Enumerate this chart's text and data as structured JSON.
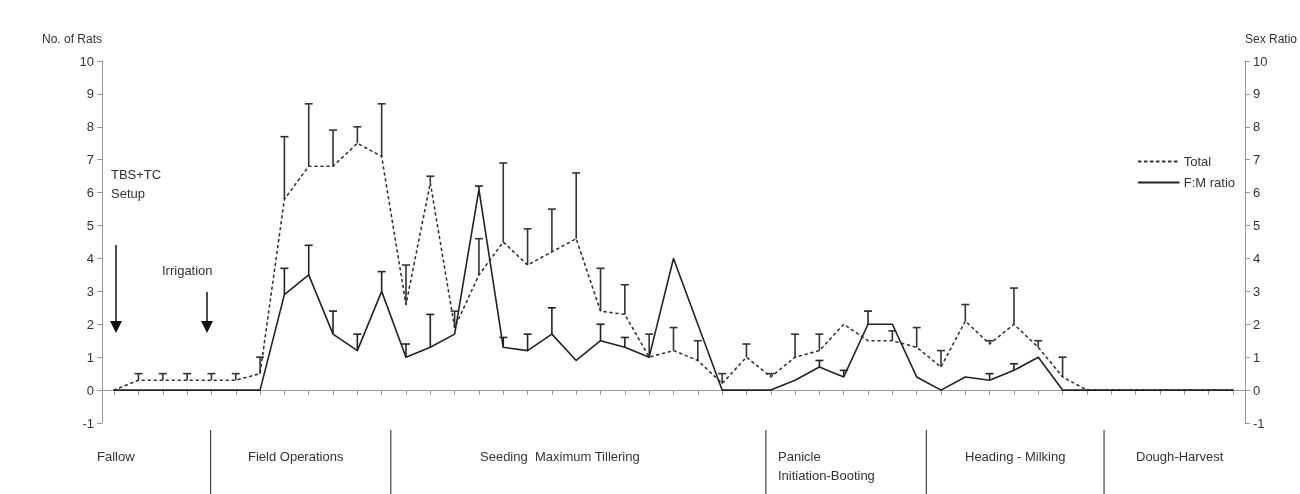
{
  "chart_data": {
    "type": "line",
    "ylabel": "No. of Rats",
    "y2label": "Sex Ratio",
    "categories": [
      null,
      null,
      null,
      null,
      null,
      null,
      null,
      null,
      null,
      null,
      null,
      null,
      null,
      null,
      null,
      null,
      null,
      null,
      null,
      null,
      null,
      null,
      null,
      null,
      null,
      null,
      null,
      null,
      null,
      null,
      null,
      null,
      null,
      null,
      null,
      null,
      null,
      null,
      null,
      null,
      null,
      null,
      null,
      null,
      null,
      null,
      null
    ],
    "series": [
      {
        "name": "Total",
        "color": "#333333",
        "line_style": "dotted",
        "values": [
          0,
          0.3,
          0.3,
          0.3,
          0.3,
          0.3,
          0.5,
          5.8,
          6.8,
          6.8,
          7.5,
          7.1,
          2.6,
          6.3,
          1.9,
          3.5,
          4.5,
          3.8,
          4.2,
          4.6,
          2.4,
          2.3,
          1.0,
          1.2,
          0.9,
          0.2,
          1.0,
          0.4,
          1.0,
          1.2,
          2.0,
          1.5,
          1.5,
          1.3,
          0.7,
          2.1,
          1.4,
          2.0,
          1.3,
          0.4,
          0,
          0,
          0,
          0,
          0,
          0,
          0
        ],
        "errors": [
          null,
          [
            0.3,
            0.5
          ],
          [
            0.3,
            0.5
          ],
          [
            0.3,
            0.5
          ],
          [
            0.3,
            0.5
          ],
          [
            0.3,
            0.5
          ],
          [
            0.5,
            1.0
          ],
          [
            5.8,
            7.7
          ],
          [
            6.8,
            8.7
          ],
          [
            6.8,
            7.9
          ],
          [
            7.5,
            8.0
          ],
          [
            7.1,
            8.7
          ],
          [
            2.6,
            3.8
          ],
          [
            6.3,
            6.5
          ],
          [
            1.9,
            2.4
          ],
          [
            3.5,
            4.6
          ],
          [
            4.5,
            6.9
          ],
          [
            3.8,
            4.9
          ],
          [
            4.2,
            5.5
          ],
          [
            4.6,
            6.6
          ],
          [
            2.4,
            3.7
          ],
          [
            2.3,
            3.2
          ],
          [
            1.0,
            1.7
          ],
          [
            1.2,
            1.9
          ],
          [
            0.9,
            1.5
          ],
          [
            0.2,
            0.5
          ],
          [
            1.0,
            1.4
          ],
          [
            0.4,
            0.5
          ],
          [
            1.0,
            1.7
          ],
          [
            1.2,
            1.7
          ],
          null,
          null,
          [
            1.5,
            1.8
          ],
          [
            1.3,
            1.9
          ],
          [
            0.7,
            1.2
          ],
          [
            2.1,
            2.6
          ],
          [
            1.4,
            1.5
          ],
          [
            2.0,
            3.1
          ],
          [
            1.3,
            1.5
          ],
          [
            0.4,
            1.0
          ],
          null,
          null,
          null,
          null,
          null,
          null,
          null
        ]
      },
      {
        "name": "F:M ratio",
        "color": "#222222",
        "line_style": "solid",
        "axis": "y2",
        "values": [
          0,
          0,
          0,
          0,
          0,
          0,
          0,
          2.9,
          3.5,
          1.7,
          1.2,
          3.0,
          1.0,
          1.3,
          1.7,
          6.1,
          1.3,
          1.2,
          1.7,
          0.9,
          1.5,
          1.3,
          1.0,
          4.0,
          2.0,
          0,
          0,
          0,
          0.3,
          0.7,
          0.4,
          2.0,
          2.0,
          0.4,
          0,
          0.4,
          0.3,
          0.6,
          1.0,
          0,
          0,
          0,
          0,
          0,
          0,
          0,
          0
        ],
        "errors": [
          null,
          null,
          null,
          null,
          null,
          null,
          null,
          [
            2.9,
            3.7
          ],
          [
            3.5,
            4.4
          ],
          [
            1.7,
            2.4
          ],
          [
            1.2,
            1.7
          ],
          [
            3.0,
            3.6
          ],
          [
            1.0,
            1.4
          ],
          [
            1.3,
            2.3
          ],
          null,
          [
            6.1,
            6.2
          ],
          [
            1.3,
            1.6
          ],
          [
            1.2,
            1.7
          ],
          [
            1.7,
            2.5
          ],
          null,
          [
            1.5,
            2.0
          ],
          [
            1.3,
            1.6
          ],
          null,
          null,
          null,
          null,
          null,
          null,
          null,
          [
            0.7,
            0.9
          ],
          [
            0.4,
            0.6
          ],
          [
            2.0,
            2.4
          ],
          null,
          null,
          null,
          null,
          [
            0.3,
            0.5
          ],
          [
            0.6,
            0.8
          ],
          null,
          null,
          null,
          null,
          null,
          null,
          null,
          null,
          null
        ]
      }
    ],
    "ylim": [
      -1,
      10
    ],
    "yticks": [
      -1,
      0,
      1,
      2,
      3,
      4,
      5,
      6,
      7,
      8,
      9,
      10
    ],
    "y2lim": [
      -1,
      10
    ],
    "y2ticks": [
      -1,
      0,
      1,
      2,
      3,
      4,
      5,
      6,
      7,
      8,
      9,
      10
    ],
    "legend": "top right",
    "marker": "none",
    "annotations": [
      "TBS+TC Setup",
      "Irrigation",
      "Fallow",
      "Field Operations",
      "Seeding  Maximum Tillering",
      "Panicle Initiation-Booting",
      "Heading - Milking",
      "Dough-Harvest"
    ]
  }
}
